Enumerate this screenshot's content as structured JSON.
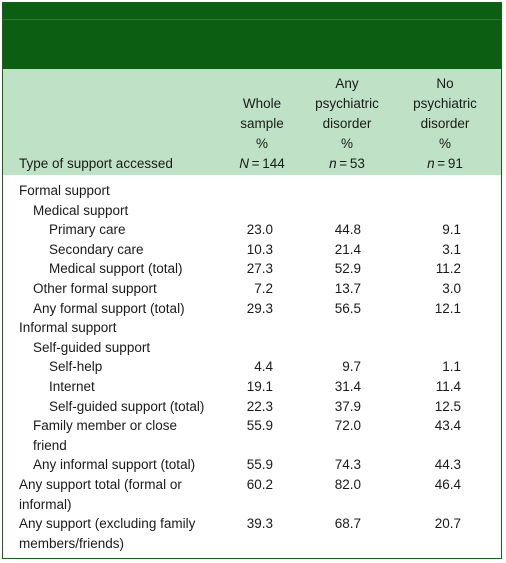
{
  "table": {
    "columns": [
      {
        "lines": [
          "Whole",
          "sample",
          "%"
        ],
        "n_label": "N",
        "n_value": " = 144"
      },
      {
        "lines": [
          "Any",
          "psychiatric",
          "disorder",
          "%"
        ],
        "n_label": "n",
        "n_value": " = 53"
      },
      {
        "lines": [
          "No",
          "psychiatric",
          "disorder",
          "%"
        ],
        "n_label": "n",
        "n_value": " = 91"
      }
    ],
    "first_col_header": "Type of support accessed",
    "rows": [
      {
        "label": [
          "Formal support"
        ],
        "indent": 0,
        "values": [
          "",
          "",
          ""
        ]
      },
      {
        "label": [
          "Medical support"
        ],
        "indent": 1,
        "values": [
          "",
          "",
          ""
        ]
      },
      {
        "label": [
          "Primary care"
        ],
        "indent": 2,
        "values": [
          "23.0",
          "44.8",
          "9.1"
        ]
      },
      {
        "label": [
          "Secondary care"
        ],
        "indent": 2,
        "values": [
          "10.3",
          "21.4",
          "3.1"
        ]
      },
      {
        "label": [
          "Medical support (total)"
        ],
        "indent": 2,
        "values": [
          "27.3",
          "52.9",
          "11.2"
        ]
      },
      {
        "label": [
          "Other formal support"
        ],
        "indent": 1,
        "values": [
          "7.2",
          "13.7",
          "3.0"
        ]
      },
      {
        "label": [
          "Any formal support (total)"
        ],
        "indent": 1,
        "values": [
          "29.3",
          "56.5",
          "12.1"
        ]
      },
      {
        "label": [
          "Informal support"
        ],
        "indent": 0,
        "values": [
          "",
          "",
          ""
        ]
      },
      {
        "label": [
          "Self-guided support"
        ],
        "indent": 1,
        "values": [
          "",
          "",
          ""
        ]
      },
      {
        "label": [
          "Self-help"
        ],
        "indent": 2,
        "values": [
          "4.4",
          "9.7",
          "1.1"
        ]
      },
      {
        "label": [
          "Internet"
        ],
        "indent": 2,
        "values": [
          "19.1",
          "31.4",
          "11.4"
        ]
      },
      {
        "label": [
          "Self-guided support (total)"
        ],
        "indent": 2,
        "values": [
          "22.3",
          "37.9",
          "12.5"
        ]
      },
      {
        "label": [
          "Family member or close",
          "friend"
        ],
        "indent": 1,
        "values": [
          "55.9",
          "72.0",
          "43.4"
        ]
      },
      {
        "label": [
          "Any informal support (total)"
        ],
        "indent": 1,
        "values": [
          "55.9",
          "74.3",
          "44.3"
        ]
      },
      {
        "label": [
          "Any support total (formal or",
          "informal)"
        ],
        "indent": 0,
        "values": [
          "60.2",
          "82.0",
          "46.4"
        ]
      },
      {
        "label": [
          "Any support (excluding family",
          "members/friends)"
        ],
        "indent": 0,
        "values": [
          "39.3",
          "68.7",
          "20.7"
        ]
      }
    ]
  }
}
